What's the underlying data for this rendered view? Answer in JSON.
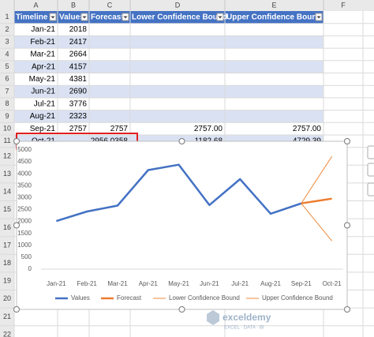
{
  "column_letters": [
    "A",
    "B",
    "C",
    "D",
    "E",
    "F"
  ],
  "row_numbers": [
    "1",
    "2",
    "3",
    "4",
    "5",
    "6",
    "7",
    "8",
    "9",
    "10",
    "11",
    "12",
    "13",
    "14",
    "15",
    "16",
    "17",
    "18",
    "19",
    "20",
    "21",
    "22"
  ],
  "table": {
    "header": [
      "Timeline",
      "Values",
      "Forecast",
      "Lower Confidence Bound",
      "Upper Confidence Bound"
    ],
    "rows": [
      [
        "Jan-21",
        "2018",
        null,
        null,
        null
      ],
      [
        "Feb-21",
        "2417",
        null,
        null,
        null
      ],
      [
        "Mar-21",
        "2664",
        null,
        null,
        null
      ],
      [
        "Apr-21",
        "4157",
        null,
        null,
        null
      ],
      [
        "May-21",
        "4381",
        null,
        null,
        null
      ],
      [
        "Jun-21",
        "2690",
        null,
        null,
        null
      ],
      [
        "Jul-21",
        "3776",
        null,
        null,
        null
      ],
      [
        "Aug-21",
        "2323",
        null,
        null,
        null
      ],
      [
        "Sep-21",
        "2757",
        "2757",
        "2757.00",
        "2757.00"
      ],
      [
        "Oct-21",
        null,
        "2956.0358",
        "1182.68",
        "4729.39"
      ]
    ]
  },
  "chart_data": {
    "type": "line",
    "categories": [
      "Jan-21",
      "Feb-21",
      "Mar-21",
      "Apr-21",
      "May-21",
      "Jun-21",
      "Jul-21",
      "Aug-21",
      "Sep-21",
      "Oct-21"
    ],
    "series": [
      {
        "name": "Values",
        "color": "#4472c4",
        "width": 2.5,
        "values": [
          2018,
          2417,
          2664,
          4157,
          4381,
          2690,
          3776,
          2323,
          2757,
          null
        ]
      },
      {
        "name": "Forecast",
        "color": "#ed7d31",
        "width": 2.5,
        "values": [
          null,
          null,
          null,
          null,
          null,
          null,
          null,
          null,
          2757,
          2956.0358
        ]
      },
      {
        "name": "Lower Confidence Bound",
        "color": "#f08a3c",
        "width": 1,
        "values": [
          null,
          null,
          null,
          null,
          null,
          null,
          null,
          null,
          2757,
          1182.68
        ]
      },
      {
        "name": "Upper Confidence Bound",
        "color": "#f08a3c",
        "width": 1,
        "values": [
          null,
          null,
          null,
          null,
          null,
          null,
          null,
          null,
          2757,
          4729.39
        ]
      }
    ],
    "ylim": [
      0,
      5000
    ],
    "yticks": [
      0,
      500,
      1000,
      1500,
      2000,
      2500,
      3000,
      3500,
      4000,
      4500,
      5000
    ],
    "legend": "bottom"
  },
  "watermark": {
    "name": "exceldemy",
    "tagline": "EXCEL · DATA · BI"
  }
}
